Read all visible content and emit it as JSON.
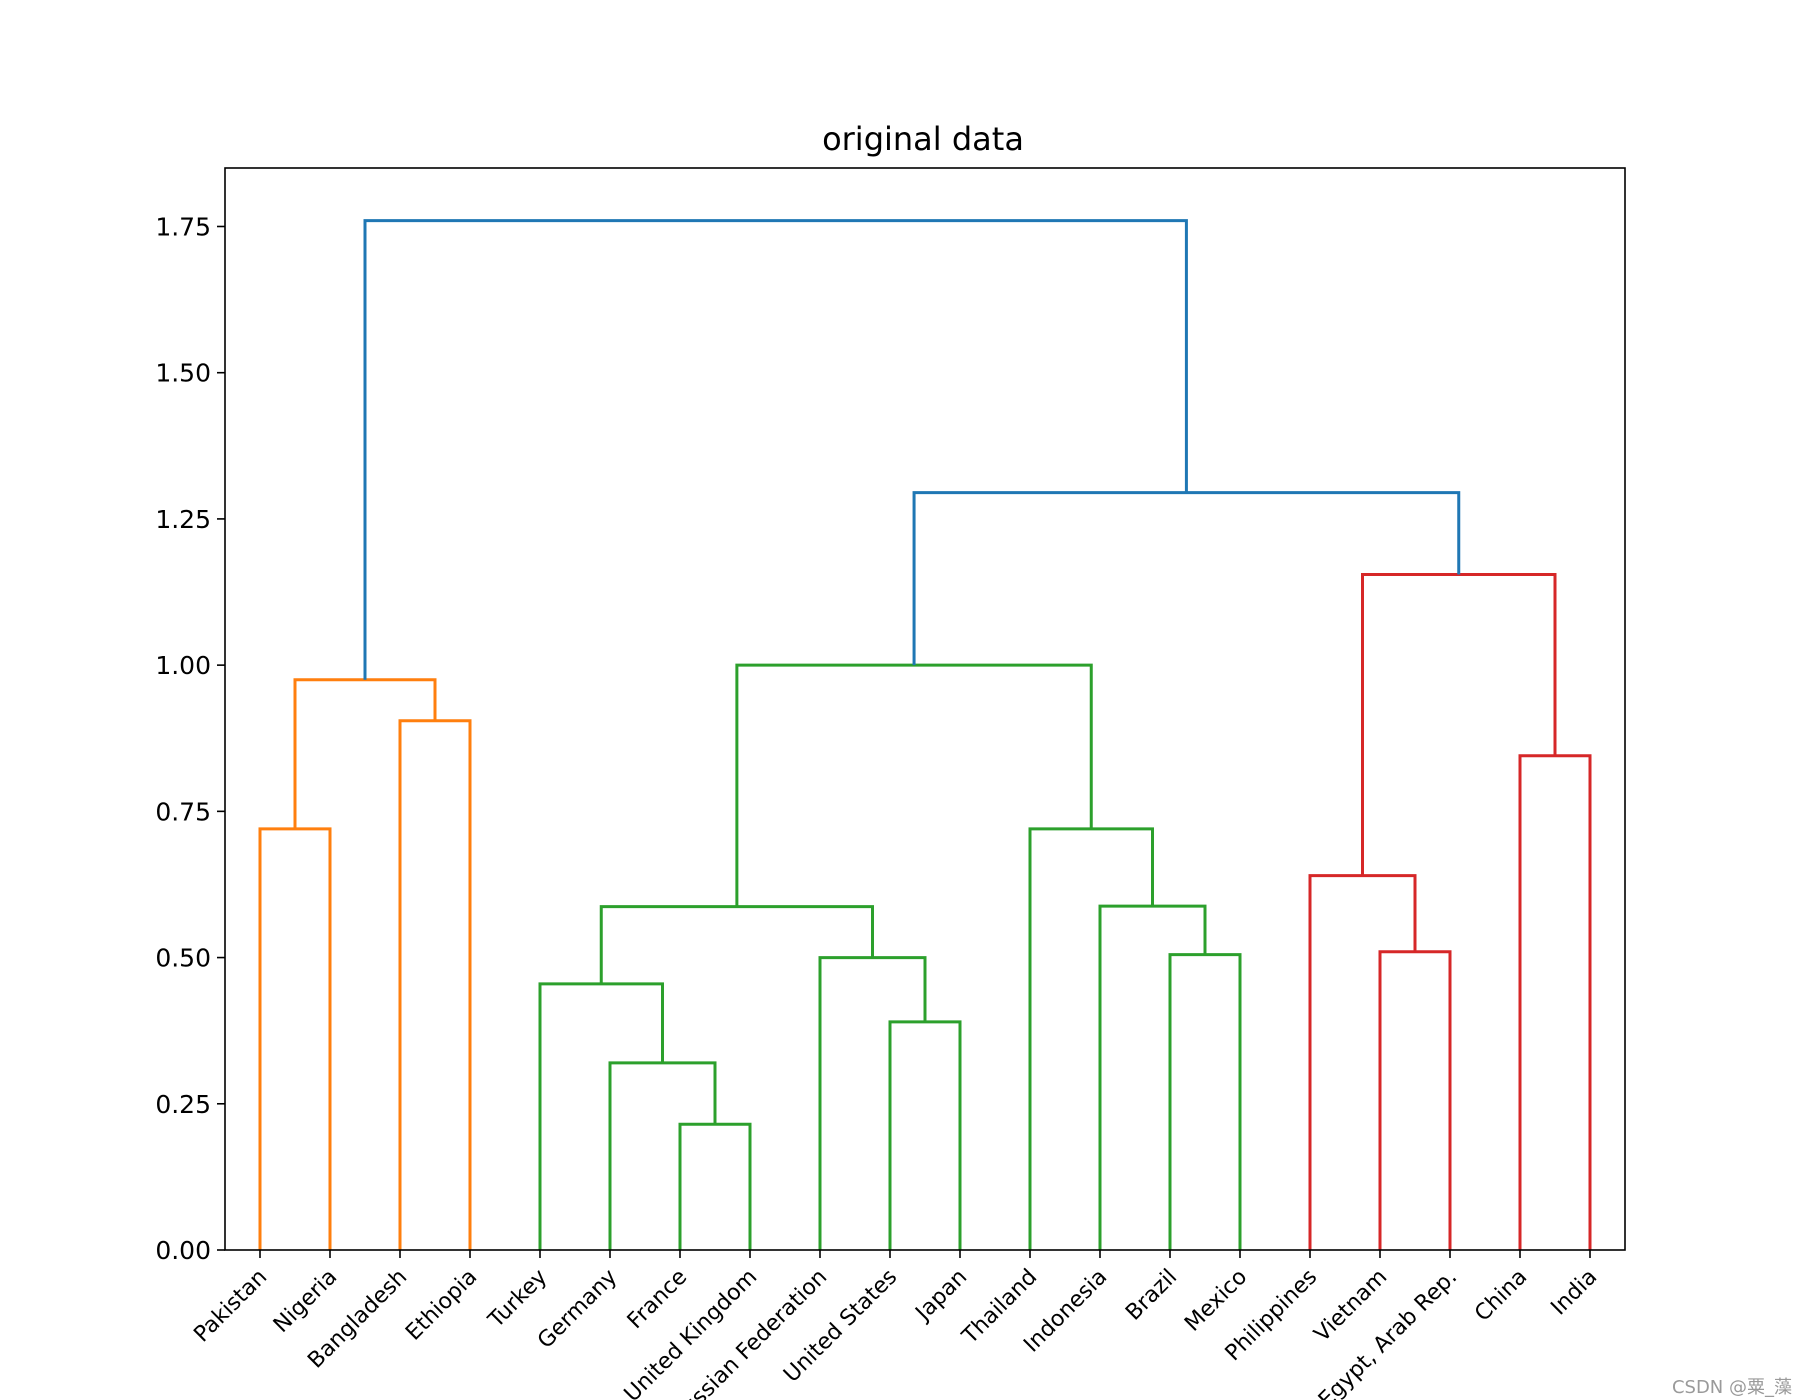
{
  "chart_data": {
    "type": "dendrogram",
    "title": "original data",
    "xlabel": "",
    "ylabel": "",
    "ylim": [
      0,
      1.85
    ],
    "yticks": [
      0.0,
      0.25,
      0.5,
      0.75,
      1.0,
      1.25,
      1.5,
      1.75
    ],
    "ytick_labels": [
      "0.00",
      "0.25",
      "0.50",
      "0.75",
      "1.00",
      "1.25",
      "1.50",
      "1.75"
    ],
    "leaves": [
      "Pakistan",
      "Nigeria",
      "Bangladesh",
      "Ethiopia",
      "Turkey",
      "Germany",
      "France",
      "United Kingdom",
      "Russian Federation",
      "United States",
      "Japan",
      "Thailand",
      "Indonesia",
      "Brazil",
      "Mexico",
      "Philippines",
      "Vietnam",
      "Egypt, Arab Rep.",
      "China",
      "India"
    ],
    "cluster_colors": {
      "orange": "#ff7f0e",
      "green": "#2ca02c",
      "red": "#d62728",
      "blue": "#1f77b4"
    },
    "links": [
      {
        "left": 0,
        "right": 1,
        "left_h": 0,
        "right_h": 0,
        "height": 0.72,
        "color": "orange"
      },
      {
        "left": 2,
        "right": 3,
        "left_h": 0,
        "right_h": 0,
        "height": 0.905,
        "color": "orange"
      },
      {
        "left": 0.5,
        "right": 2.5,
        "left_h": 0.72,
        "right_h": 0.905,
        "height": 0.975,
        "color": "orange"
      },
      {
        "left": 6,
        "right": 7,
        "left_h": 0,
        "right_h": 0,
        "height": 0.215,
        "color": "green"
      },
      {
        "left": 5,
        "right": 6.5,
        "left_h": 0,
        "right_h": 0.215,
        "height": 0.32,
        "color": "green"
      },
      {
        "left": 4,
        "right": 5.75,
        "left_h": 0,
        "right_h": 0.32,
        "height": 0.455,
        "color": "green"
      },
      {
        "left": 9,
        "right": 10,
        "left_h": 0,
        "right_h": 0,
        "height": 0.39,
        "color": "green"
      },
      {
        "left": 8,
        "right": 9.5,
        "left_h": 0,
        "right_h": 0.39,
        "height": 0.5,
        "color": "green"
      },
      {
        "left": 4.875,
        "right": 8.75,
        "left_h": 0.455,
        "right_h": 0.5,
        "height": 0.587,
        "color": "green"
      },
      {
        "left": 13,
        "right": 14,
        "left_h": 0,
        "right_h": 0,
        "height": 0.505,
        "color": "green"
      },
      {
        "left": 12,
        "right": 13.5,
        "left_h": 0,
        "right_h": 0.505,
        "height": 0.588,
        "color": "green"
      },
      {
        "left": 11,
        "right": 12.75,
        "left_h": 0,
        "right_h": 0.588,
        "height": 0.72,
        "color": "green"
      },
      {
        "left": 6.8125,
        "right": 11.875,
        "left_h": 0.587,
        "right_h": 0.72,
        "height": 1.0,
        "color": "green"
      },
      {
        "left": 16,
        "right": 17,
        "left_h": 0,
        "right_h": 0,
        "height": 0.51,
        "color": "red"
      },
      {
        "left": 15,
        "right": 16.5,
        "left_h": 0,
        "right_h": 0.51,
        "height": 0.64,
        "color": "red"
      },
      {
        "left": 18,
        "right": 19,
        "left_h": 0,
        "right_h": 0,
        "height": 0.845,
        "color": "red"
      },
      {
        "left": 15.75,
        "right": 18.5,
        "left_h": 0.64,
        "right_h": 0.845,
        "height": 1.155,
        "color": "red"
      },
      {
        "left": 9.34375,
        "right": 17.125,
        "left_h": 1.0,
        "right_h": 1.155,
        "height": 1.295,
        "color": "blue"
      },
      {
        "left": 1.5,
        "right": 13.234375,
        "left_h": 0.975,
        "right_h": 1.295,
        "height": 1.76,
        "color": "blue"
      }
    ]
  },
  "watermark": "CSDN @粟_藻"
}
